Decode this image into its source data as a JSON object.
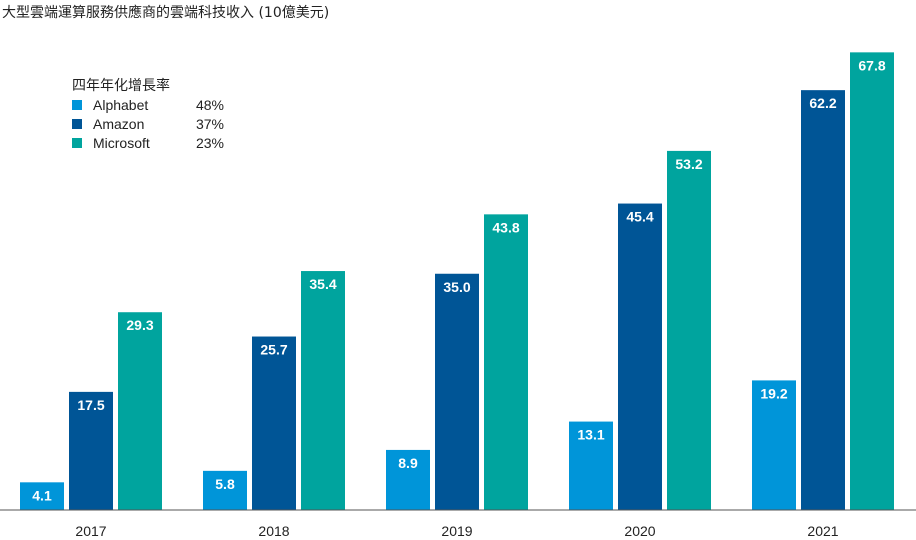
{
  "chart_data": {
    "type": "bar",
    "title": "大型雲端運算服務供應商的雲端科技收入 (10億美元)",
    "xlabel": "",
    "ylabel": "",
    "categories": [
      "2017",
      "2018",
      "2019",
      "2020",
      "2021"
    ],
    "ylim": [
      0,
      72
    ],
    "grid": false,
    "legend_title": "四年年化增長率",
    "legend_position": "top-left",
    "series": [
      {
        "name": "Alphabet",
        "values": [
          4.1,
          5.8,
          8.9,
          13.1,
          19.2
        ],
        "labels": [
          "4.1",
          "5.8",
          "8.9",
          "13.1",
          "19.2"
        ],
        "cagr": "48%",
        "color": "#0095d9"
      },
      {
        "name": "Amazon",
        "values": [
          17.5,
          25.7,
          35.0,
          45.4,
          62.2
        ],
        "labels": [
          "17.5",
          "25.7",
          "35.0",
          "45.4",
          "62.2"
        ],
        "cagr": "37%",
        "color": "#005596"
      },
      {
        "name": "Microsoft",
        "values": [
          29.3,
          35.4,
          43.8,
          53.2,
          67.8
        ],
        "labels": [
          "29.3",
          "35.4",
          "43.8",
          "53.2",
          "67.8"
        ],
        "cagr": "23%",
        "color": "#00a49e"
      }
    ]
  }
}
